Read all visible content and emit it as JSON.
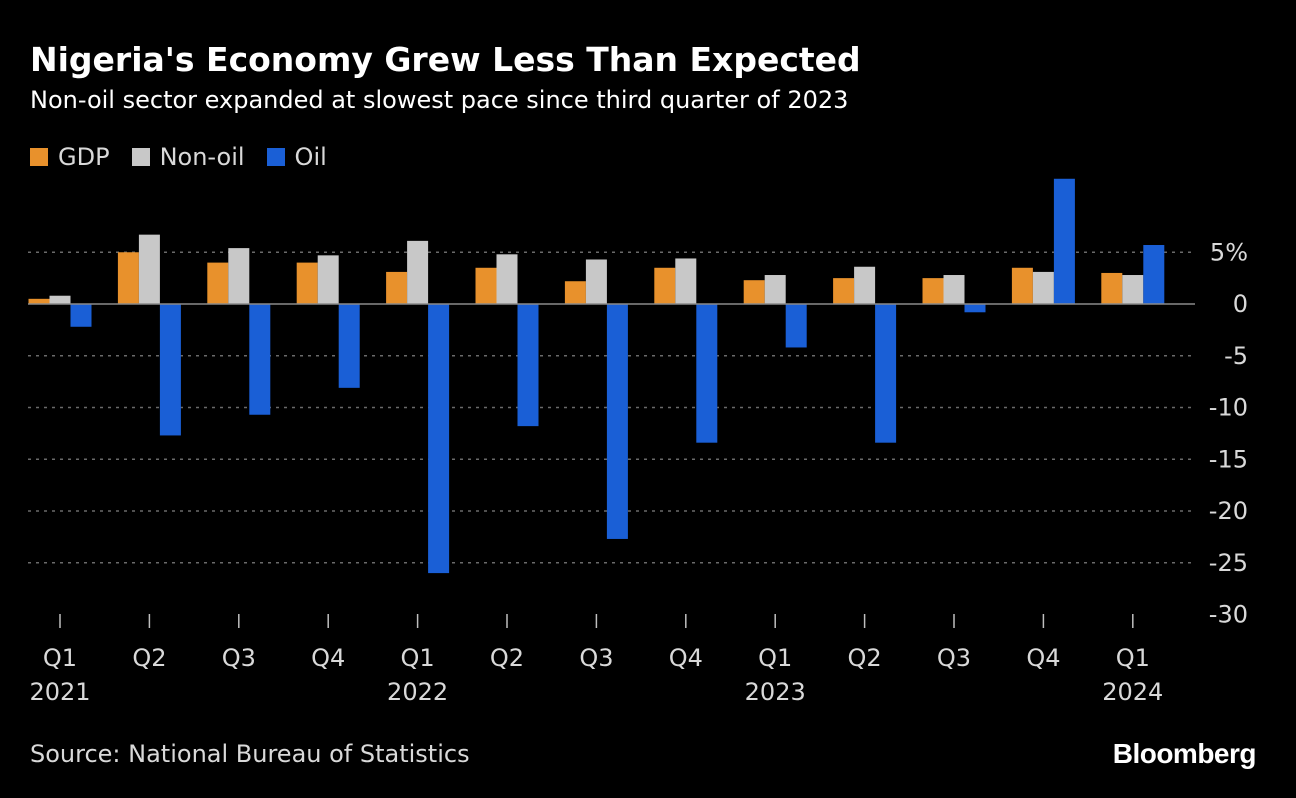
{
  "title": "Nigeria's Economy Grew Less Than Expected",
  "subtitle": "Non-oil sector expanded at slowest pace since third quarter of 2023",
  "source": "Source: National Bureau of Statistics",
  "logo_text": "Bloomberg",
  "chart_data": {
    "type": "bar",
    "categories": [
      "Q1 2021",
      "Q2 2021",
      "Q3 2021",
      "Q4 2021",
      "Q1 2022",
      "Q2 2022",
      "Q3 2022",
      "Q4 2022",
      "Q1 2023",
      "Q2 2023",
      "Q3 2023",
      "Q4 2023",
      "Q1 2024"
    ],
    "quarter_labels": [
      "Q1",
      "Q2",
      "Q3",
      "Q4",
      "Q1",
      "Q2",
      "Q3",
      "Q4",
      "Q1",
      "Q2",
      "Q3",
      "Q4",
      "Q1"
    ],
    "year_labels": [
      {
        "index": 0,
        "label": "2021"
      },
      {
        "index": 4,
        "label": "2022"
      },
      {
        "index": 8,
        "label": "2023"
      },
      {
        "index": 12,
        "label": "2024"
      }
    ],
    "series": [
      {
        "name": "GDP",
        "color": "#e8912c",
        "values": [
          0.5,
          5.0,
          4.0,
          4.0,
          3.1,
          3.5,
          2.2,
          3.5,
          2.3,
          2.5,
          2.5,
          3.5,
          3.0
        ]
      },
      {
        "name": "Non-oil",
        "color": "#c8c8c8",
        "values": [
          0.8,
          6.7,
          5.4,
          4.7,
          6.1,
          4.8,
          4.3,
          4.4,
          2.8,
          3.6,
          2.8,
          3.1,
          2.8
        ]
      },
      {
        "name": "Oil",
        "color": "#1a5fd6",
        "values": [
          -2.2,
          -12.7,
          -10.7,
          -8.1,
          -26.0,
          -11.8,
          -22.7,
          -13.4,
          -4.2,
          -13.4,
          -0.8,
          12.1,
          5.7
        ]
      }
    ],
    "ylim": [
      -30,
      12.1
    ],
    "yticks": [
      5,
      0,
      -5,
      -10,
      -15,
      -20,
      -25,
      -30
    ],
    "ytick_labels": [
      "5%",
      "0",
      "-5",
      "-10",
      "-15",
      "-20",
      "-25",
      "-30"
    ],
    "xlabel": "",
    "ylabel": "",
    "legend_position": "top-left",
    "grid": true
  }
}
